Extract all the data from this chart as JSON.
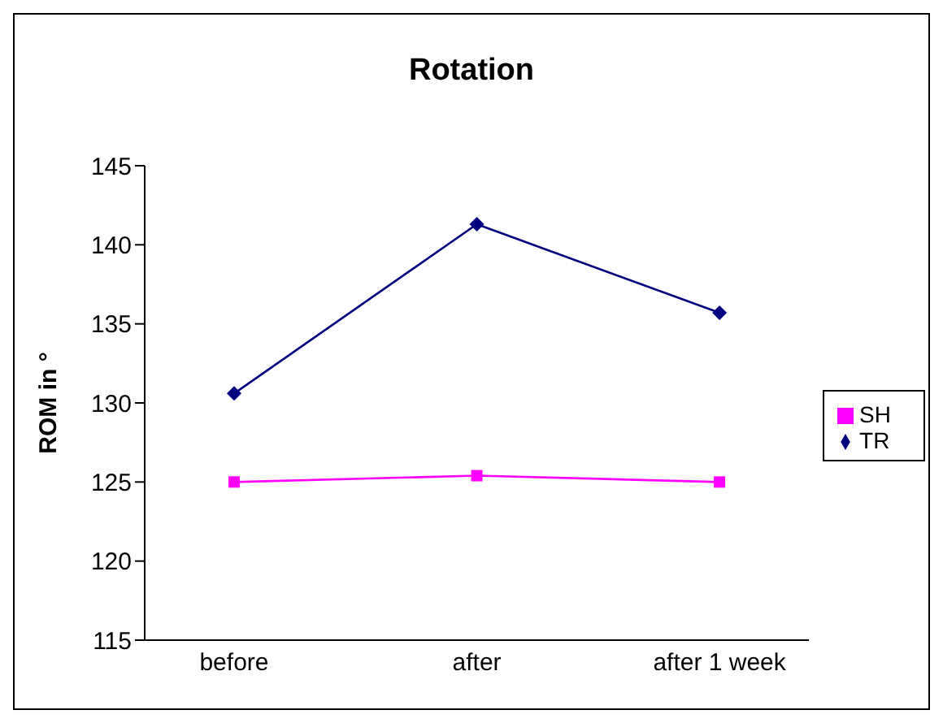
{
  "chart_data": {
    "type": "line",
    "title": "Rotation",
    "ylabel": "ROM in °",
    "categories": [
      "before",
      "after",
      "after 1 week"
    ],
    "series": [
      {
        "name": "TR",
        "color": "#000080",
        "marker": "diamond",
        "values": [
          130.6,
          141.3,
          135.7
        ]
      },
      {
        "name": "SH",
        "color": "#ff00ff",
        "marker": "square",
        "values": [
          125.0,
          125.4,
          125.0
        ]
      }
    ],
    "ylim": [
      115,
      145
    ],
    "yticks": [
      115,
      120,
      125,
      130,
      135,
      140,
      145
    ],
    "grid": false,
    "legend": "right",
    "line_style": "solid"
  }
}
